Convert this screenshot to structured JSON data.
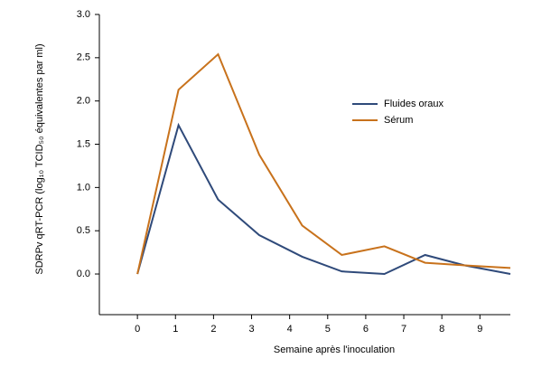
{
  "chart_data": {
    "type": "line",
    "x_label": "Semaine après l'inoculation",
    "y_label": "SDRPv qRT-PCR (log₁₀ TCID₅₀ équivalentes par ml)",
    "x": [
      0,
      1.08,
      2.12,
      3.2,
      4.33,
      5.37,
      6.49,
      7.56,
      8.6,
      9.8
    ],
    "series": [
      {
        "name": "Fluides oraux",
        "color": "#2f4a7a",
        "values": [
          0,
          1.72,
          0.86,
          0.45,
          0.2,
          0.03,
          0.0,
          0.22,
          0.1,
          0.0
        ]
      },
      {
        "name": "Sérum",
        "color": "#c8721c",
        "values": [
          0,
          2.13,
          2.54,
          1.38,
          0.56,
          0.22,
          0.32,
          0.13,
          0.1,
          0.07
        ]
      }
    ],
    "xlim": [
      -1,
      9.8
    ],
    "xticks": [
      0,
      1,
      2,
      3,
      4,
      5,
      6,
      7,
      8,
      9
    ],
    "ylim": [
      -0.47,
      3
    ],
    "yticks": [
      {
        "value": 0,
        "label": "0.0"
      },
      {
        "value": 0.5,
        "label": "0.5"
      },
      {
        "value": 1,
        "label": "1.0"
      },
      {
        "value": 1.5,
        "label": "1.5"
      },
      {
        "value": 2,
        "label": "2.0"
      },
      {
        "value": 2.5,
        "label": "2.5"
      },
      {
        "value": 3,
        "label": "3.0"
      }
    ],
    "legend": "upper right"
  }
}
